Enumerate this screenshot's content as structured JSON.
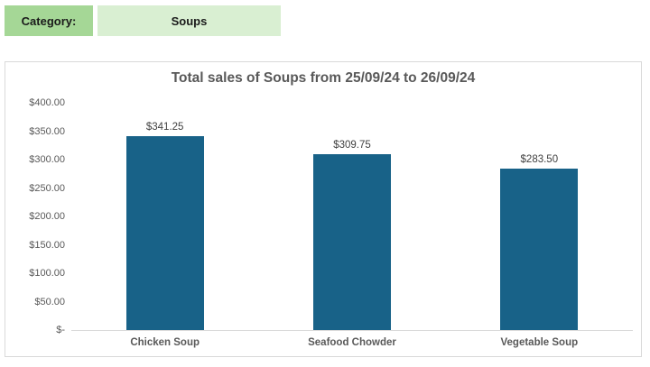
{
  "header": {
    "category_label": "Category:",
    "category_value": "Soups"
  },
  "colors": {
    "bar": "#186288",
    "category_label_bg": "#a5d796",
    "category_value_bg": "#d9efd2",
    "chart_border": "#d9d9d9",
    "title_text": "#595959",
    "axis_text": "#595959",
    "data_label_text": "#404040"
  },
  "chart_data": {
    "type": "bar",
    "title": "Total sales of Soups from 25/09/24 to 26/09/24",
    "categories": [
      "Chicken Soup",
      "Seafood Chowder",
      "Vegetable Soup"
    ],
    "values": [
      341.25,
      309.75,
      283.5
    ],
    "value_labels": [
      "$341.25",
      "$309.75",
      "$283.50"
    ],
    "xlabel": "",
    "ylabel": "",
    "ylim": [
      0,
      400
    ],
    "yticks": [
      {
        "value": 0,
        "label": "$-"
      },
      {
        "value": 50,
        "label": "$50.00"
      },
      {
        "value": 100,
        "label": "$100.00"
      },
      {
        "value": 150,
        "label": "$150.00"
      },
      {
        "value": 200,
        "label": "$200.00"
      },
      {
        "value": 250,
        "label": "$250.00"
      },
      {
        "value": 300,
        "label": "$300.00"
      },
      {
        "value": 350,
        "label": "$350.00"
      },
      {
        "value": 400,
        "label": "$400.00"
      }
    ],
    "grid": false,
    "legend": false
  }
}
